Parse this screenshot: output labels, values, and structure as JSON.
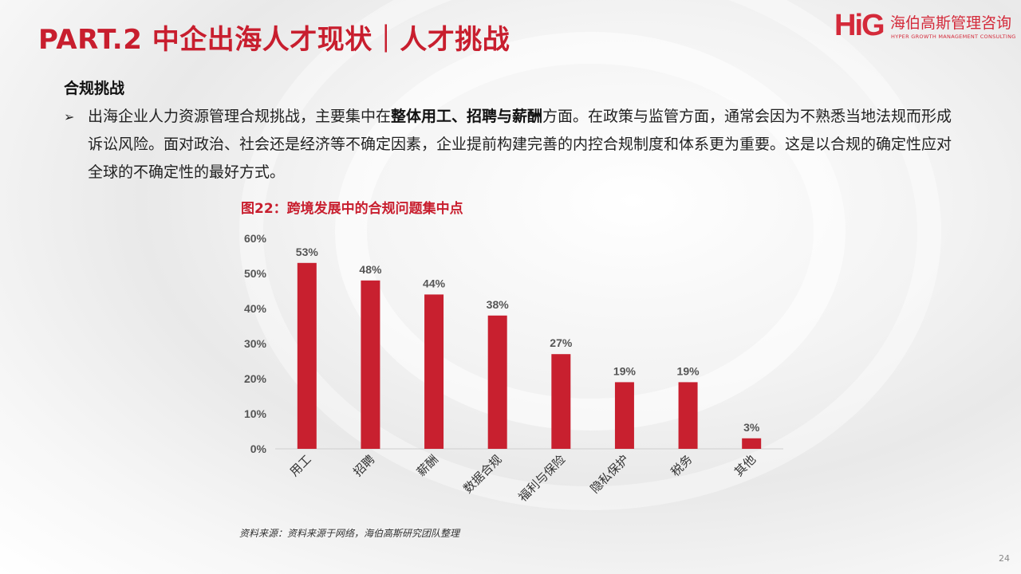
{
  "header": {
    "title": "PART.2 中企出海人才现状｜人才挑战",
    "logo_mark": "HiG",
    "logo_cn": "海伯高斯管理咨询",
    "logo_en": "HYPER GROWTH MANAGEMENT CONSULTING"
  },
  "section": {
    "heading": "合规挑战",
    "bullet_arrow": "➢",
    "bullet_part1": "出海企业人力资源管理合规挑战，主要集中在",
    "bullet_bold": "整体用工、招聘与薪酬",
    "bullet_part2": "方面。在政策与监管方面，通常会因为不熟悉当地法规而形成诉讼风险。面对政治、社会还是经济等不确定因素，企业提前构建完善的内控合规制度和体系更为重要。这是以合规的确定性应对全球的不确定性的最好方式。"
  },
  "figure": {
    "title": "图22：跨境发展中的合规问题集中点",
    "source": "资料来源：资料来源于网络，海伯高斯研究团队整理"
  },
  "colors": {
    "accent": "#c81e2e",
    "bar": "#c8202f"
  },
  "chart_data": {
    "type": "bar",
    "categories": [
      "用工",
      "招聘",
      "薪酬",
      "数据合规",
      "福利与保险",
      "隐私保护",
      "税务",
      "其他"
    ],
    "values": [
      53,
      48,
      44,
      38,
      27,
      19,
      19,
      3
    ],
    "value_labels": [
      "53%",
      "48%",
      "44%",
      "38%",
      "27%",
      "19%",
      "19%",
      "3%"
    ],
    "yticks": [
      "0%",
      "10%",
      "20%",
      "30%",
      "40%",
      "50%",
      "60%"
    ],
    "ylim": [
      0,
      60
    ],
    "grid": false,
    "legend": "none"
  },
  "page_number": "24"
}
